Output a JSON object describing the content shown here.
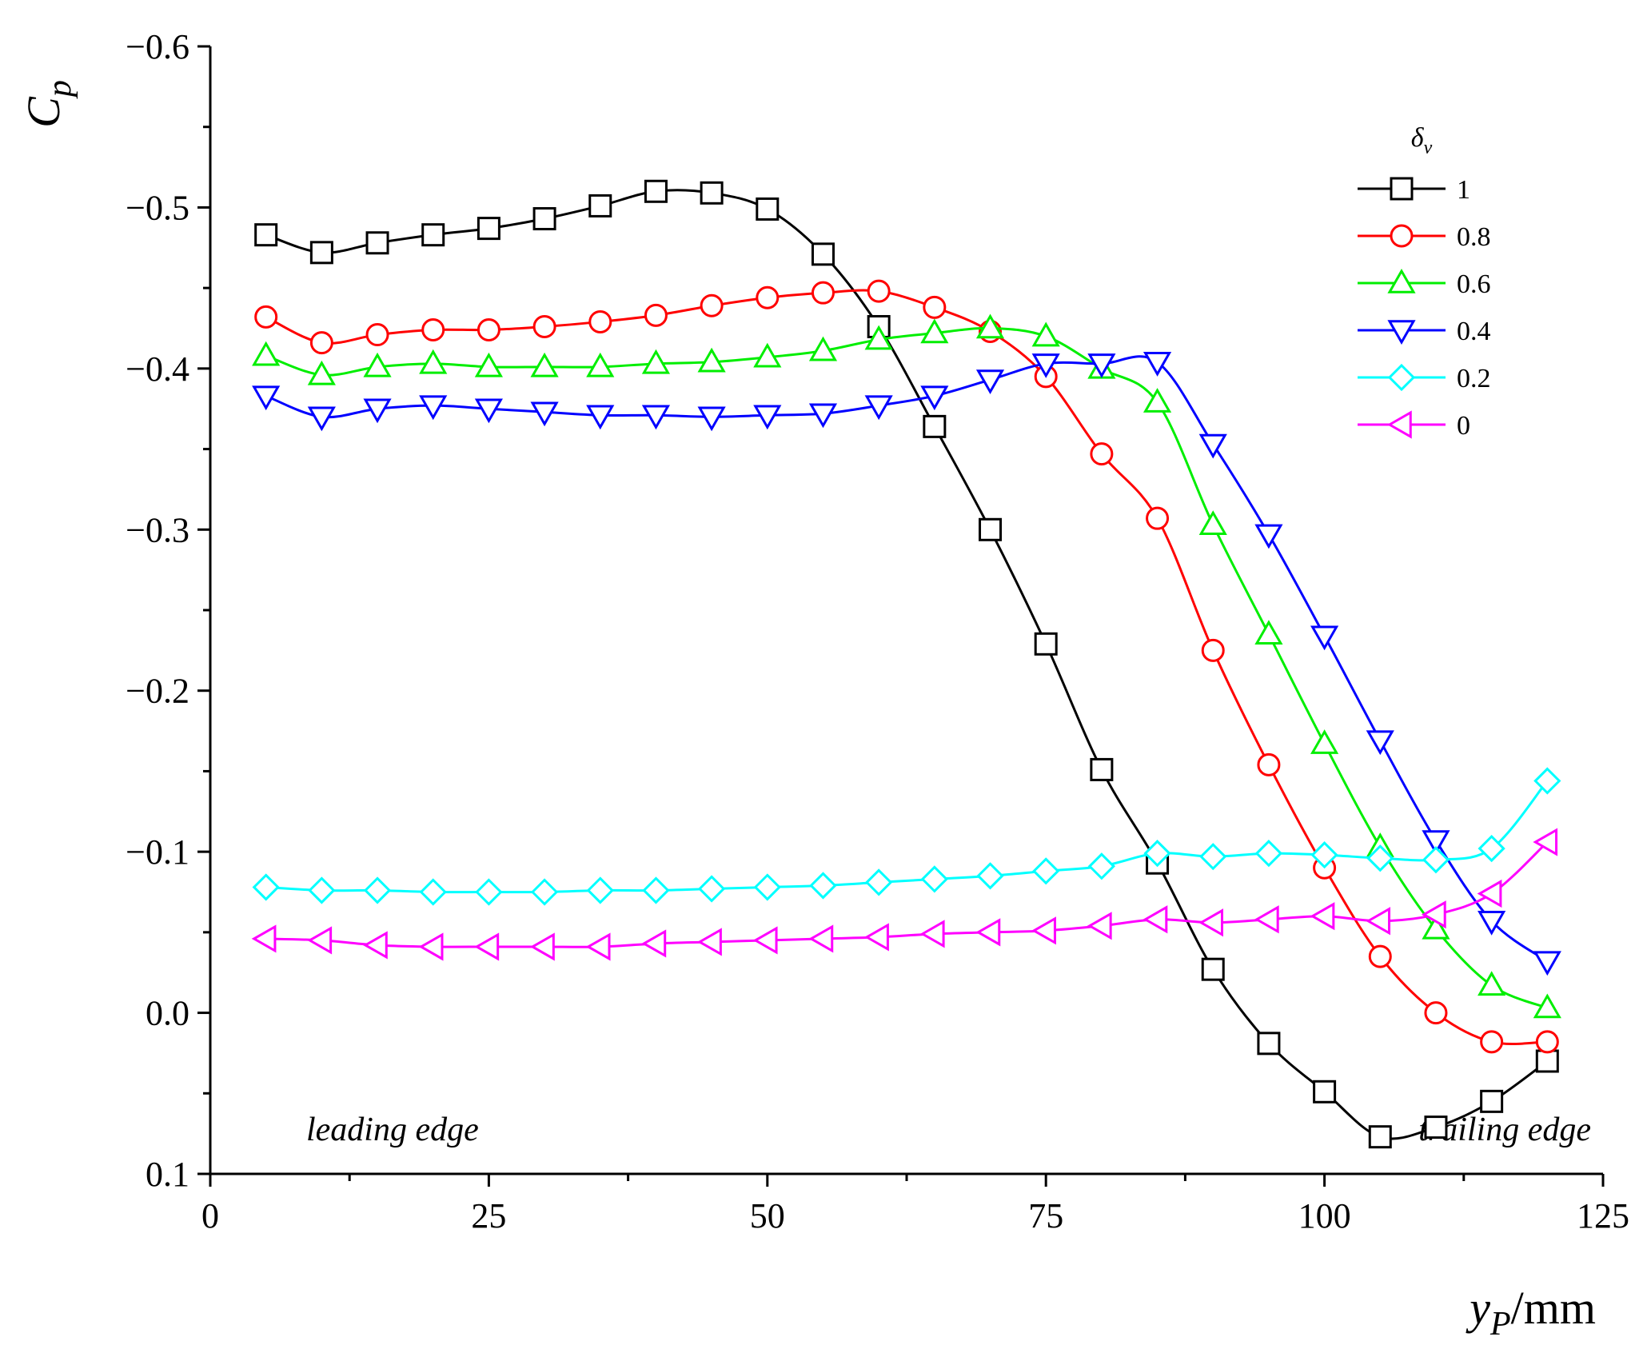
{
  "chart_data": {
    "type": "line",
    "ylabel": "C",
    "ylabel_sub": "p",
    "xlabel": "y",
    "xlabel_sub": "P",
    "xlabel_unit": "/mm",
    "xlim": [
      0,
      125
    ],
    "ylim": [
      -0.6,
      0.1
    ],
    "y_inverted": true,
    "x_ticks": [
      0,
      25,
      50,
      75,
      100,
      125
    ],
    "x_tick_labels": [
      "0",
      "25",
      "50",
      "75",
      "100",
      "125"
    ],
    "y_ticks": [
      -0.6,
      -0.5,
      -0.4,
      -0.3,
      -0.2,
      -0.1,
      0.0,
      0.1
    ],
    "y_tick_labels": [
      "−0.6",
      "−0.5",
      "−0.4",
      "−0.3",
      "−0.2",
      "−0.1",
      "0.0",
      "0.1"
    ],
    "legend_title": "δ",
    "legend_title_sub": "v",
    "legend_position": "top-right",
    "annotations": {
      "leading": "leading edge",
      "trailing": "trailing edge"
    },
    "x": [
      5,
      10,
      15,
      20,
      25,
      30,
      35,
      40,
      45,
      50,
      55,
      60,
      65,
      70,
      75,
      80,
      85,
      90,
      95,
      100,
      105,
      110,
      115,
      120
    ],
    "series": [
      {
        "name": "1",
        "color": "#000000",
        "marker": "square",
        "values": [
          -0.483,
          -0.472,
          -0.478,
          -0.483,
          -0.487,
          -0.493,
          -0.501,
          -0.51,
          -0.509,
          -0.499,
          -0.471,
          -0.426,
          -0.364,
          -0.3,
          -0.229,
          -0.151,
          -0.093,
          -0.027,
          0.019,
          0.049,
          0.077,
          0.071,
          0.055,
          0.03
        ]
      },
      {
        "name": "0.8",
        "color": "#ff0000",
        "marker": "circle",
        "values": [
          -0.432,
          -0.416,
          -0.421,
          -0.424,
          -0.424,
          -0.426,
          -0.429,
          -0.433,
          -0.439,
          -0.444,
          -0.447,
          -0.448,
          -0.438,
          -0.423,
          -0.395,
          -0.347,
          -0.307,
          -0.225,
          -0.154,
          -0.09,
          -0.035,
          0.0,
          0.018,
          0.018
        ]
      },
      {
        "name": "0.6",
        "color": "#00ee00",
        "marker": "triangle-up",
        "values": [
          -0.408,
          -0.396,
          -0.401,
          -0.403,
          -0.401,
          -0.401,
          -0.401,
          -0.403,
          -0.404,
          -0.407,
          -0.411,
          -0.418,
          -0.422,
          -0.425,
          -0.42,
          -0.4,
          -0.379,
          -0.303,
          -0.235,
          -0.167,
          -0.103,
          -0.052,
          -0.017,
          -0.003
        ]
      },
      {
        "name": "0.4",
        "color": "#0000ff",
        "marker": "triangle-down",
        "values": [
          -0.383,
          -0.37,
          -0.375,
          -0.377,
          -0.375,
          -0.373,
          -0.371,
          -0.371,
          -0.37,
          -0.371,
          -0.372,
          -0.377,
          -0.383,
          -0.393,
          -0.403,
          -0.403,
          -0.404,
          -0.353,
          -0.297,
          -0.234,
          -0.169,
          -0.107,
          -0.057,
          -0.032
        ]
      },
      {
        "name": "0.2",
        "color": "#00ffff",
        "marker": "diamond",
        "values": [
          -0.078,
          -0.076,
          -0.076,
          -0.075,
          -0.075,
          -0.075,
          -0.076,
          -0.076,
          -0.077,
          -0.078,
          -0.079,
          -0.081,
          -0.083,
          -0.085,
          -0.088,
          -0.091,
          -0.099,
          -0.097,
          -0.099,
          -0.098,
          -0.096,
          -0.095,
          -0.102,
          -0.144
        ]
      },
      {
        "name": "0",
        "color": "#ff00ff",
        "marker": "triangle-left",
        "values": [
          -0.046,
          -0.045,
          -0.042,
          -0.041,
          -0.041,
          -0.041,
          -0.041,
          -0.043,
          -0.044,
          -0.045,
          -0.046,
          -0.047,
          -0.049,
          -0.05,
          -0.051,
          -0.054,
          -0.058,
          -0.056,
          -0.058,
          -0.06,
          -0.057,
          -0.061,
          -0.074,
          -0.106
        ]
      }
    ],
    "colors": {
      "airfoil_fill": "#f4e0fa",
      "axis": "#000000"
    }
  }
}
